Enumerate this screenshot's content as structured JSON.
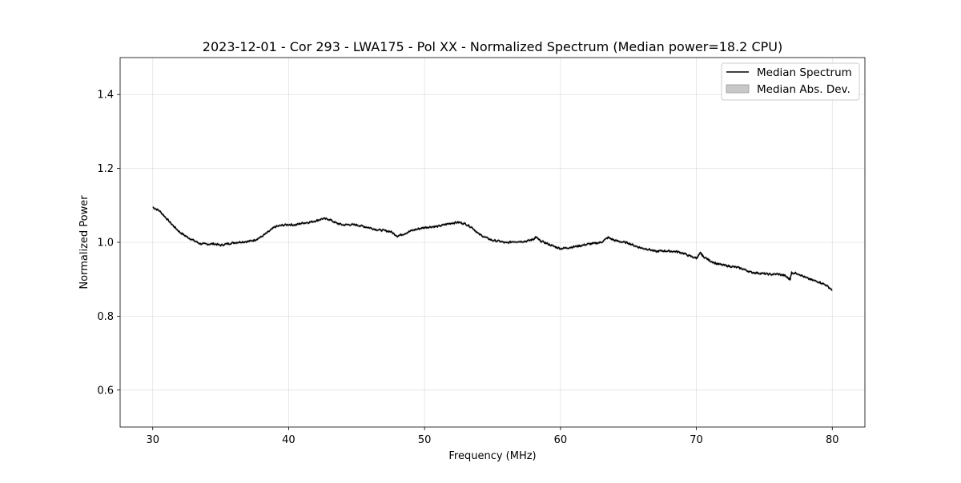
{
  "chart_data": {
    "type": "line",
    "title": "2023-12-01 - Cor 293 - LWA175 - Pol XX - Normalized Spectrum (Median power=18.2 CPU)",
    "xlabel": "Frequency (MHz)",
    "ylabel": "Normalized Power",
    "xlim": [
      27.6,
      82.4
    ],
    "ylim": [
      0.5,
      1.5
    ],
    "xticks": [
      30,
      40,
      50,
      60,
      70,
      80
    ],
    "yticks": [
      0.6,
      0.8,
      1.0,
      1.2,
      1.4
    ],
    "xtick_labels": [
      "30",
      "40",
      "50",
      "60",
      "70",
      "80"
    ],
    "ytick_labels": [
      "0.6",
      "0.8",
      "1.0",
      "1.2",
      "1.4"
    ],
    "grid": true,
    "legend_position": "top-right",
    "series": [
      {
        "name": "Median Spectrum",
        "color": "#000000",
        "x": [
          30.0,
          30.5,
          31.0,
          31.5,
          32.0,
          32.5,
          33.0,
          33.5,
          34.0,
          34.5,
          35.0,
          35.5,
          36.0,
          36.5,
          37.0,
          37.5,
          38.0,
          38.5,
          39.0,
          39.5,
          40.0,
          40.5,
          41.0,
          41.5,
          42.0,
          42.5,
          43.0,
          43.5,
          44.0,
          44.5,
          45.0,
          45.5,
          46.0,
          46.5,
          47.0,
          47.5,
          48.0,
          48.5,
          49.0,
          49.5,
          50.0,
          50.5,
          51.0,
          51.5,
          52.0,
          52.5,
          53.0,
          53.5,
          54.0,
          54.5,
          55.0,
          55.5,
          56.0,
          56.5,
          57.0,
          57.5,
          58.0,
          58.2,
          58.5,
          59.0,
          59.5,
          60.0,
          60.5,
          61.0,
          61.5,
          62.0,
          62.5,
          63.0,
          63.5,
          64.0,
          64.5,
          65.0,
          65.5,
          66.0,
          66.5,
          67.0,
          67.5,
          68.0,
          68.5,
          69.0,
          69.5,
          70.0,
          70.3,
          70.5,
          71.0,
          71.5,
          72.0,
          72.5,
          73.0,
          73.5,
          74.0,
          74.5,
          75.0,
          75.5,
          76.0,
          76.5,
          76.9,
          77.0,
          77.5,
          78.0,
          78.5,
          79.0,
          79.5,
          80.0
        ],
        "values": [
          1.095,
          1.085,
          1.065,
          1.045,
          1.027,
          1.015,
          1.005,
          0.996,
          0.995,
          0.996,
          0.992,
          0.996,
          0.999,
          1.001,
          1.002,
          1.006,
          1.015,
          1.028,
          1.042,
          1.046,
          1.048,
          1.047,
          1.052,
          1.054,
          1.058,
          1.064,
          1.062,
          1.052,
          1.047,
          1.048,
          1.047,
          1.043,
          1.039,
          1.034,
          1.032,
          1.029,
          1.017,
          1.023,
          1.031,
          1.036,
          1.04,
          1.042,
          1.043,
          1.048,
          1.052,
          1.054,
          1.05,
          1.04,
          1.022,
          1.013,
          1.005,
          1.003,
          0.998,
          1.002,
          1.002,
          1.003,
          1.008,
          1.014,
          1.004,
          0.997,
          0.989,
          0.983,
          0.985,
          0.988,
          0.991,
          0.995,
          0.997,
          1.0,
          1.013,
          1.005,
          1.001,
          0.998,
          0.99,
          0.984,
          0.981,
          0.975,
          0.977,
          0.976,
          0.975,
          0.971,
          0.963,
          0.957,
          0.971,
          0.962,
          0.95,
          0.942,
          0.938,
          0.935,
          0.932,
          0.927,
          0.919,
          0.917,
          0.915,
          0.913,
          0.914,
          0.91,
          0.899,
          0.918,
          0.915,
          0.905,
          0.898,
          0.893,
          0.885,
          0.871
        ]
      },
      {
        "name": "Median Abs. Dev.",
        "color": "#b0b0b0",
        "kind": "band",
        "half_width": 0.004
      }
    ]
  }
}
